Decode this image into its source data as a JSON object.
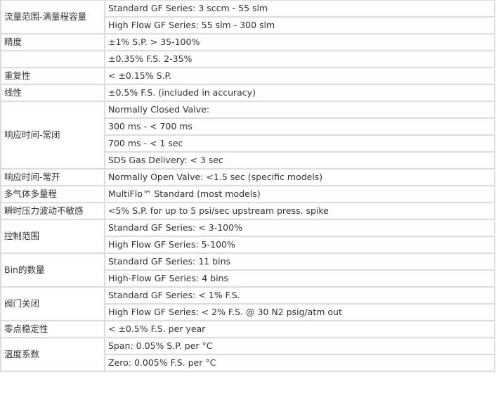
{
  "rows": [
    {
      "label": "流量范围-满量程容量",
      "values": [
        "Standard GF Series: 3 sccm - 55 slm",
        "High Flow GF Series: 55 slm - 300 slm"
      ]
    },
    {
      "label": "精度",
      "values": [
        "±1% S.P. > 35-100%"
      ]
    },
    {
      "label": "",
      "values": [
        "±0.35% F.S. 2-35%"
      ]
    },
    {
      "label": "重复性",
      "values": [
        "<  ±0.15% S.P."
      ]
    },
    {
      "label": "线性",
      "values": [
        "±0.5% F.S. (included in accuracy)"
      ]
    },
    {
      "label": "响应时间-常闭",
      "values": [
        "Normally Closed Valve:",
        "300 ms - < 700 ms",
        "700 ms - < 1 sec",
        "SDS Gas Delivery: < 3 sec"
      ]
    },
    {
      "label": "响应时间-常开",
      "values": [
        "Normally Open Valve: <1.5 sec (specific models)"
      ]
    },
    {
      "label": "多气体多量程",
      "values": [
        "MultiFlo™ Standard (most models)"
      ]
    },
    {
      "label": "瞬时压力波动不敏感",
      "values": [
        "<5% S.P. for up to 5 psi/sec upstream press. spike"
      ]
    },
    {
      "label": "控制范围",
      "values": [
        "Standard GF Series: < 3-100%",
        "High Flow GF Series: 5-100%"
      ]
    },
    {
      "label": "Bin的数量",
      "values": [
        "Standard GF Series: 11 bins",
        "High-Flow GF Series: 4 bins"
      ]
    },
    {
      "label": "阀门关闭",
      "values": [
        "Standard GF Series: < 1% F.S.",
        "High Flow GF Series: < 2% F.S. @ 30 N2 psig/atm out"
      ]
    },
    {
      "label": "零点稳定性",
      "values": [
        "<  ±0.5% F.S. per year"
      ]
    },
    {
      "label": "温度系数",
      "values": [
        "Span: 0.05% S.P. per °C",
        "Zero: 0.005% F.S. per °C"
      ]
    }
  ]
}
